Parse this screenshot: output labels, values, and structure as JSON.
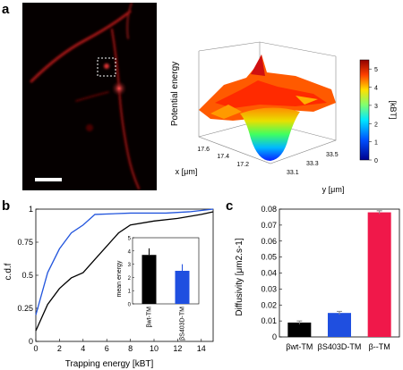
{
  "panels": {
    "a": {
      "letter": "a"
    },
    "b": {
      "letter": "b"
    },
    "c": {
      "letter": "c"
    }
  },
  "surface": {
    "zlabel": "Potential energy",
    "xlabel": "x [μm]",
    "ylabel": "y [μm]",
    "x_ticks": [
      "17.6",
      "17.4",
      "17.2"
    ],
    "y_ticks": [
      "33.1",
      "33.3",
      "33.5"
    ],
    "colorbar_label": "[kBT]",
    "colorbar_ticks": [
      "0",
      "1",
      "2",
      "3",
      "4",
      "5"
    ],
    "colorbar_range": [
      0,
      5.5
    ]
  },
  "chart_data": [
    {
      "type": "line",
      "panel": "b",
      "xlabel": "Trapping energy [kBT]",
      "ylabel": "c.d.f",
      "xlim": [
        0,
        15
      ],
      "ylim": [
        0,
        1
      ],
      "x_ticks": [
        0,
        2,
        4,
        6,
        8,
        10,
        12,
        14
      ],
      "y_ticks": [
        0,
        0.25,
        0.5,
        0.75,
        1
      ],
      "series": [
        {
          "color": "#2255dd",
          "points": [
            [
              0,
              0.2
            ],
            [
              1,
              0.52
            ],
            [
              2,
              0.7
            ],
            [
              3,
              0.82
            ],
            [
              4,
              0.88
            ],
            [
              5,
              0.96
            ],
            [
              8,
              0.97
            ],
            [
              11,
              0.97
            ],
            [
              13,
              0.98
            ],
            [
              15,
              1.0
            ]
          ]
        },
        {
          "color": "#000000",
          "points": [
            [
              0,
              0.08
            ],
            [
              1,
              0.28
            ],
            [
              2,
              0.4
            ],
            [
              3,
              0.48
            ],
            [
              4,
              0.52
            ],
            [
              5,
              0.62
            ],
            [
              6,
              0.72
            ],
            [
              7,
              0.82
            ],
            [
              8,
              0.88
            ],
            [
              10,
              0.91
            ],
            [
              12,
              0.93
            ],
            [
              14,
              0.96
            ],
            [
              15,
              0.98
            ]
          ]
        }
      ],
      "inset": {
        "type": "bar",
        "ylabel": "mean energy",
        "ylim": [
          0,
          5
        ],
        "y_ticks": [
          0,
          1,
          2,
          3,
          4,
          5
        ],
        "categories": [
          "βwt-TM",
          "βS403D-TM"
        ],
        "values": [
          3.7,
          2.5
        ],
        "errors": [
          0.5,
          0.5
        ],
        "colors": [
          "#000000",
          "#1f4fe0"
        ]
      }
    },
    {
      "type": "bar",
      "panel": "c",
      "ylabel": "Diffusivity [μm2.s-1]",
      "ylim": [
        0,
        0.08
      ],
      "y_ticks": [
        "0",
        "0.01",
        "0.02",
        "0.03",
        "0.04",
        "0.05",
        "0.06",
        "0.07",
        "0.08"
      ],
      "categories": [
        "βwt-TM",
        "βS403D-TM",
        "β--TM"
      ],
      "values": [
        0.009,
        0.015,
        0.078
      ],
      "errors": [
        0.001,
        0.001,
        0.001
      ],
      "colors": [
        "#000000",
        "#1f4fe0",
        "#f0184a"
      ]
    }
  ]
}
